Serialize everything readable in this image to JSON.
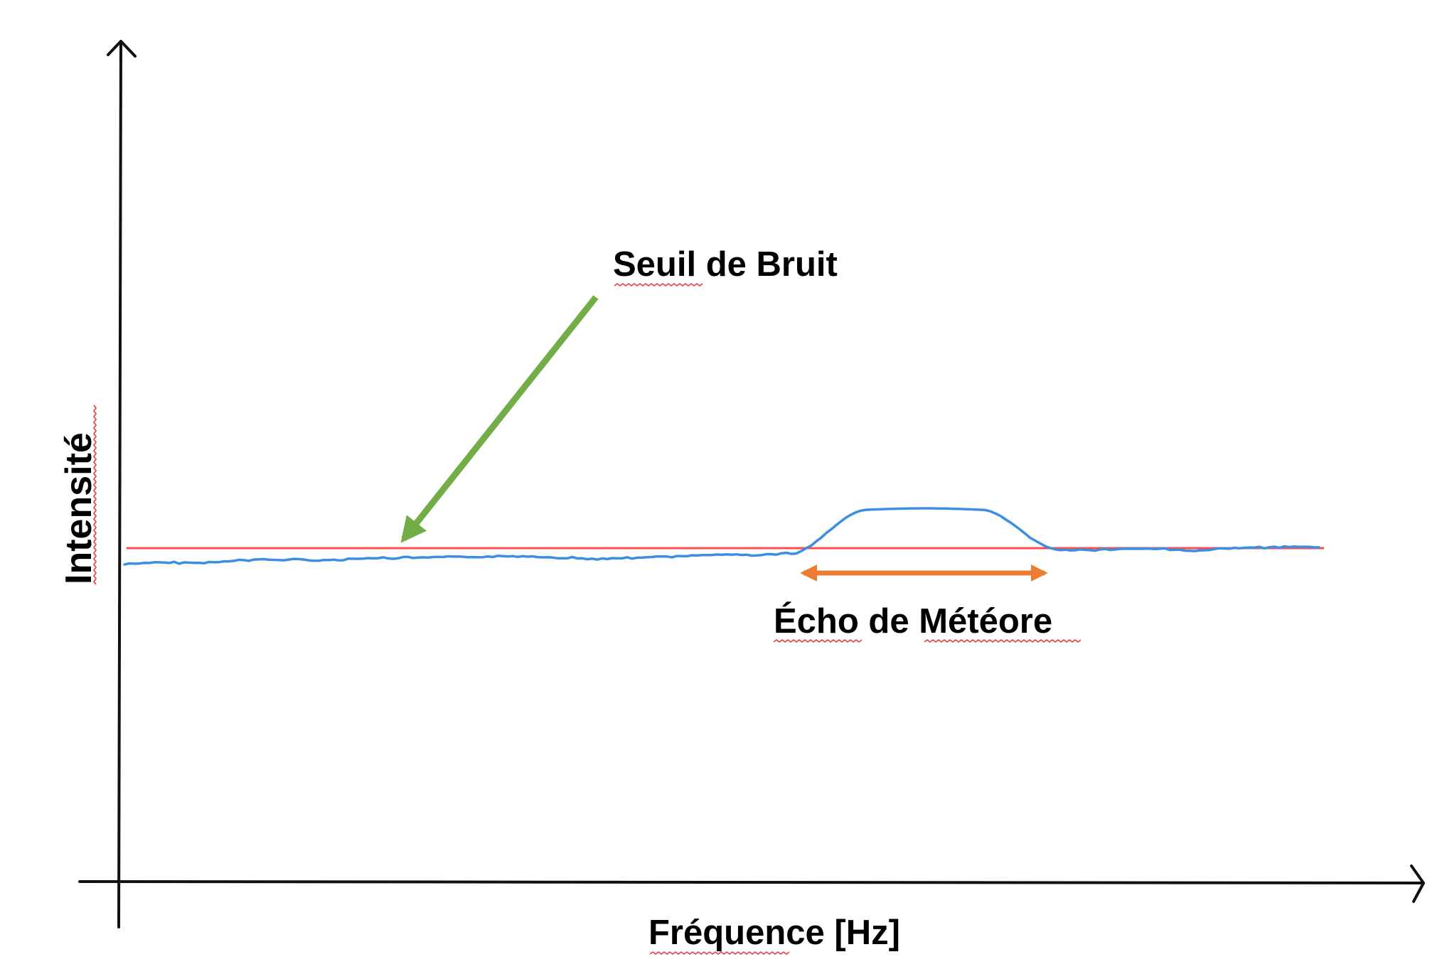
{
  "labels": {
    "y_axis": "Intensité",
    "x_axis": "Fréquence [Hz]",
    "noise_threshold": "Seuil de Bruit",
    "meteor_echo": "Écho de Météore"
  },
  "colors": {
    "axes": "#111111",
    "threshold_line": "#ff4d4d",
    "signal": "#3c8fe0",
    "threshold_pointer": "#72ad47",
    "echo_span": "#ed7d31",
    "spell_underline": "#e04040"
  }
}
